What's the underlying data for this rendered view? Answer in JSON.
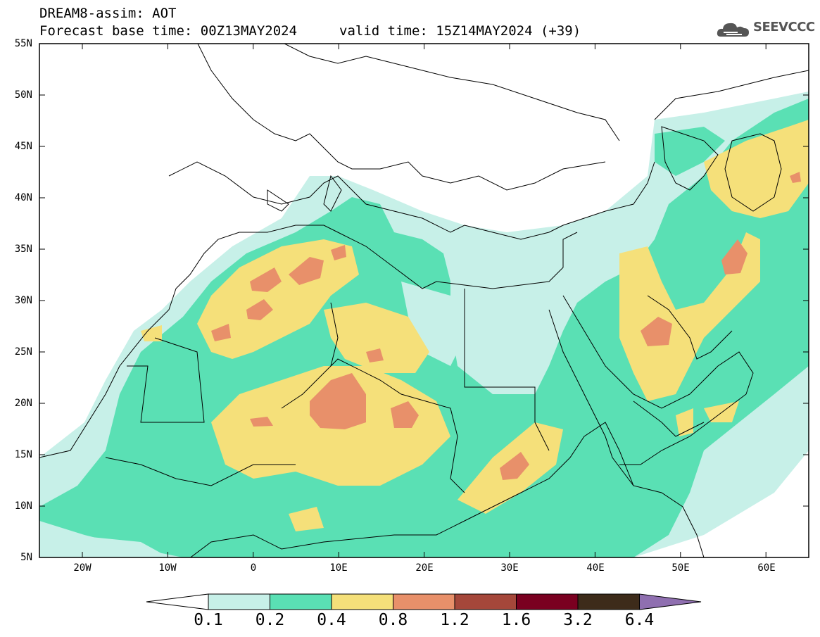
{
  "header": {
    "title_line1": "DREAM8-assim: AOT",
    "title_line2": "Forecast base time: 00Z13MAY2024",
    "valid_time": "valid time: 15Z14MAY2024 (+39)",
    "logo_text": "SEEVCCC"
  },
  "axes": {
    "lat_labels": [
      "55N",
      "50N",
      "45N",
      "40N",
      "35N",
      "30N",
      "25N",
      "20N",
      "15N",
      "10N",
      "5N"
    ],
    "lon_labels": [
      "20W",
      "10W",
      "0",
      "10E",
      "20E",
      "30E",
      "40E",
      "50E",
      "60E"
    ]
  },
  "colorbar": {
    "labels": [
      "0.1",
      "0.2",
      "0.4",
      "0.8",
      "1.2",
      "1.6",
      "3.2",
      "6.4"
    ],
    "colors": [
      "#ffffff",
      "#c7f0e8",
      "#5ae0b4",
      "#f5e07a",
      "#e8906a",
      "#a5473a",
      "#7a0020",
      "#3d2b1a",
      "#8f6fb0"
    ]
  },
  "map_colors": {
    "light_teal": "#c7f0e8",
    "teal": "#5ae0b4",
    "yellow": "#f5e07a",
    "orange": "#e8906a"
  }
}
